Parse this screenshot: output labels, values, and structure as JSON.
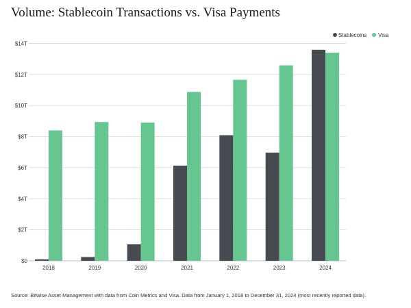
{
  "chart_data": {
    "type": "bar",
    "title": "Volume: Stablecoin Transactions vs. Visa Payments",
    "categories": [
      "2018",
      "2019",
      "2020",
      "2021",
      "2022",
      "2023",
      "2024"
    ],
    "series": [
      {
        "name": "Stablecoins",
        "color": "#464b51",
        "values": [
          0.09,
          0.24,
          1.06,
          6.13,
          8.09,
          6.97,
          13.59
        ]
      },
      {
        "name": "Visa",
        "color": "#66c68f",
        "values": [
          8.4,
          8.94,
          8.9,
          10.88,
          11.66,
          12.59,
          13.41
        ]
      }
    ],
    "unit": "trillion USD",
    "ylim": [
      0,
      14
    ],
    "yticks": [
      0,
      2,
      4,
      6,
      8,
      10,
      12,
      14
    ],
    "ytick_labels": [
      "$0",
      "$2T",
      "$4T",
      "$6T",
      "$8T",
      "$10T",
      "$12T",
      "$14T"
    ],
    "xlabel": "",
    "ylabel": "",
    "grid": true,
    "legend": "top-right",
    "source": "Source: Bitwise Asset Management with data from Coin Metrics and Visa. Data from January 1, 2018 to December 31, 2024 (most recently reported data)."
  }
}
